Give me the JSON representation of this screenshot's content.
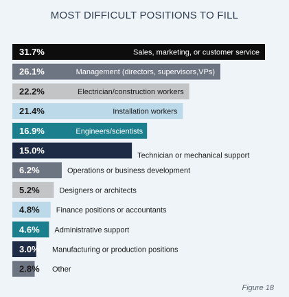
{
  "chart_data": {
    "type": "bar",
    "orientation": "horizontal",
    "title": "MOST DIFFICULT POSITIONS TO FILL",
    "xlim": [
      0,
      31.7
    ],
    "categories": [
      "Sales, marketing, or customer service",
      "Management (directors, supervisors,VPs)",
      "Electrician/construction workers",
      "Installation workers",
      "Engineers/scientists",
      "Technician or mechanical support",
      "Operations or business development",
      "Designers or architects",
      "Finance positions or accountants",
      "Administrative support",
      "Manufacturing or production positions",
      "Other"
    ],
    "values": [
      31.7,
      26.1,
      22.2,
      21.4,
      16.9,
      15.0,
      6.2,
      5.2,
      4.8,
      4.6,
      3.0,
      2.8
    ],
    "value_labels": [
      "31.7%",
      "26.1%",
      "22.2%",
      "21.4%",
      "16.9%",
      "15.0%",
      "6.2%",
      "5.2%",
      "4.8%",
      "4.6%",
      "3.0%",
      "2.8%"
    ],
    "bar_colors": [
      "#0d0d0d",
      "#6d7583",
      "#c3c4c6",
      "#bcd9ea",
      "#1c7f8e",
      "#1f2c45",
      "#6d7583",
      "#c3c4c6",
      "#bcd9ea",
      "#1c7f8e",
      "#1f2c45",
      "#6d7583"
    ],
    "value_text_colors": [
      "#ffffff",
      "#ffffff",
      "#1a1a1a",
      "#1a1a1a",
      "#ffffff",
      "#ffffff",
      "#ffffff",
      "#1a1a1a",
      "#1a1a1a",
      "#ffffff",
      "#ffffff",
      "#1a1a1a"
    ],
    "label_text_colors": [
      "#ffffff",
      "#ffffff",
      "#1a1a1a",
      "#1a1a1a",
      "#ffffff",
      "#1a1a1a",
      "#1a1a1a",
      "#1a1a1a",
      "#1a1a1a",
      "#1a1a1a",
      "#1a1a1a",
      "#1a1a1a"
    ],
    "grid": false,
    "legend": "none"
  },
  "figure_label": "Figure 18",
  "colors": {
    "background": "#eef4f7",
    "title": "#2f3d4f"
  }
}
